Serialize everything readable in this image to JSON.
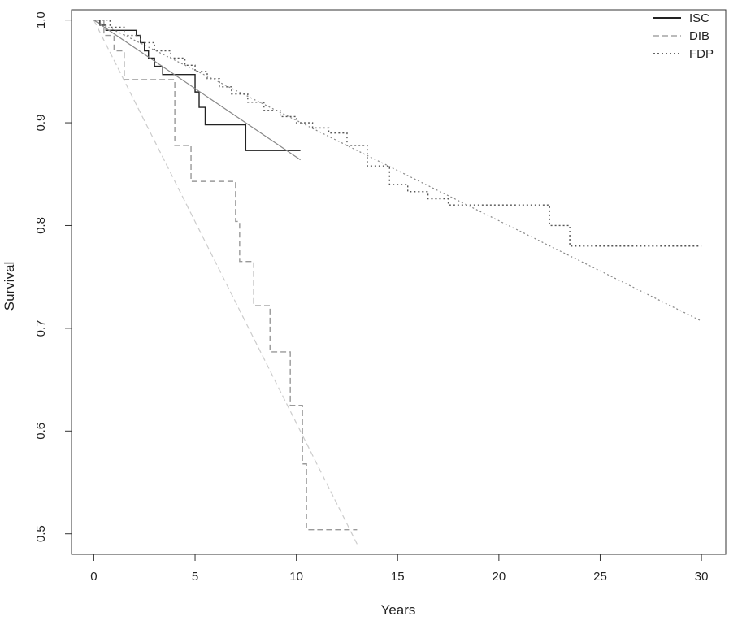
{
  "chart_data": {
    "type": "line",
    "title": "",
    "xlabel": "Years",
    "ylabel": "Survival",
    "xlim": [
      -1.1,
      31.2
    ],
    "ylim": [
      0.48,
      1.01
    ],
    "xticks": [
      0,
      5,
      10,
      15,
      20,
      25,
      30
    ],
    "yticks": [
      0.5,
      0.6,
      0.7,
      0.8,
      0.9,
      1.0
    ],
    "ytick_labels": [
      "0.5",
      "0.6",
      "0.7",
      "0.8",
      "0.9",
      "1.0"
    ],
    "grid": false,
    "legend": {
      "position": "top-right",
      "entries": [
        {
          "name": "ISC",
          "color": "#222222",
          "dash": "solid"
        },
        {
          "name": "DIB",
          "color": "#bbbbbb",
          "dash": "dashed"
        },
        {
          "name": "FDP",
          "color": "#666666",
          "dash": "dotted"
        }
      ]
    },
    "series": [
      {
        "name": "ISC",
        "kind": "km-step",
        "color": "#222222",
        "dash": "solid",
        "x": [
          0,
          0.3,
          0.6,
          1.2,
          2.0,
          2.1,
          2.3,
          2.5,
          2.7,
          3.0,
          3.4,
          4.0,
          4.8,
          5.0,
          5.2,
          5.5,
          7.0,
          7.5,
          10.2
        ],
        "y": [
          1.0,
          0.995,
          0.99,
          0.99,
          0.99,
          0.985,
          0.978,
          0.97,
          0.963,
          0.955,
          0.947,
          0.947,
          0.947,
          0.93,
          0.915,
          0.898,
          0.898,
          0.873,
          0.873
        ]
      },
      {
        "name": "ISC",
        "kind": "fit",
        "color": "#888888",
        "dash": "solid",
        "x": [
          0,
          10.2
        ],
        "y": [
          1.0,
          0.864
        ]
      },
      {
        "name": "DIB",
        "kind": "km-step",
        "color": "#999999",
        "dash": "dashed",
        "x": [
          0,
          0.5,
          1.0,
          1.5,
          4.0,
          4.8,
          7.0,
          7.2,
          7.9,
          8.7,
          9.7,
          10.3,
          10.5,
          13.0
        ],
        "y": [
          1.0,
          0.985,
          0.97,
          0.942,
          0.878,
          0.843,
          0.804,
          0.765,
          0.722,
          0.677,
          0.625,
          0.568,
          0.504,
          0.504
        ]
      },
      {
        "name": "DIB",
        "kind": "fit",
        "color": "#cccccc",
        "dash": "dashed",
        "x": [
          0,
          13.0
        ],
        "y": [
          1.0,
          0.49
        ]
      },
      {
        "name": "FDP",
        "kind": "km-step",
        "color": "#555555",
        "dash": "dotted",
        "x": [
          0,
          0.8,
          1.5,
          2.3,
          3.0,
          3.8,
          4.5,
          5.0,
          5.6,
          6.2,
          6.8,
          7.6,
          8.4,
          9.2,
          10.0,
          10.8,
          11.6,
          12.5,
          13.5,
          14.6,
          15.5,
          16.5,
          17.5,
          22.0,
          22.5,
          23.5,
          30.0
        ],
        "y": [
          1.0,
          0.993,
          0.985,
          0.978,
          0.97,
          0.963,
          0.956,
          0.95,
          0.943,
          0.935,
          0.928,
          0.92,
          0.912,
          0.906,
          0.9,
          0.895,
          0.89,
          0.878,
          0.858,
          0.84,
          0.833,
          0.826,
          0.82,
          0.82,
          0.8,
          0.78,
          0.78
        ]
      },
      {
        "name": "FDP",
        "kind": "fit",
        "color": "#888888",
        "dash": "dotted",
        "x": [
          0,
          30.0
        ],
        "y": [
          1.0,
          0.707
        ]
      }
    ]
  }
}
